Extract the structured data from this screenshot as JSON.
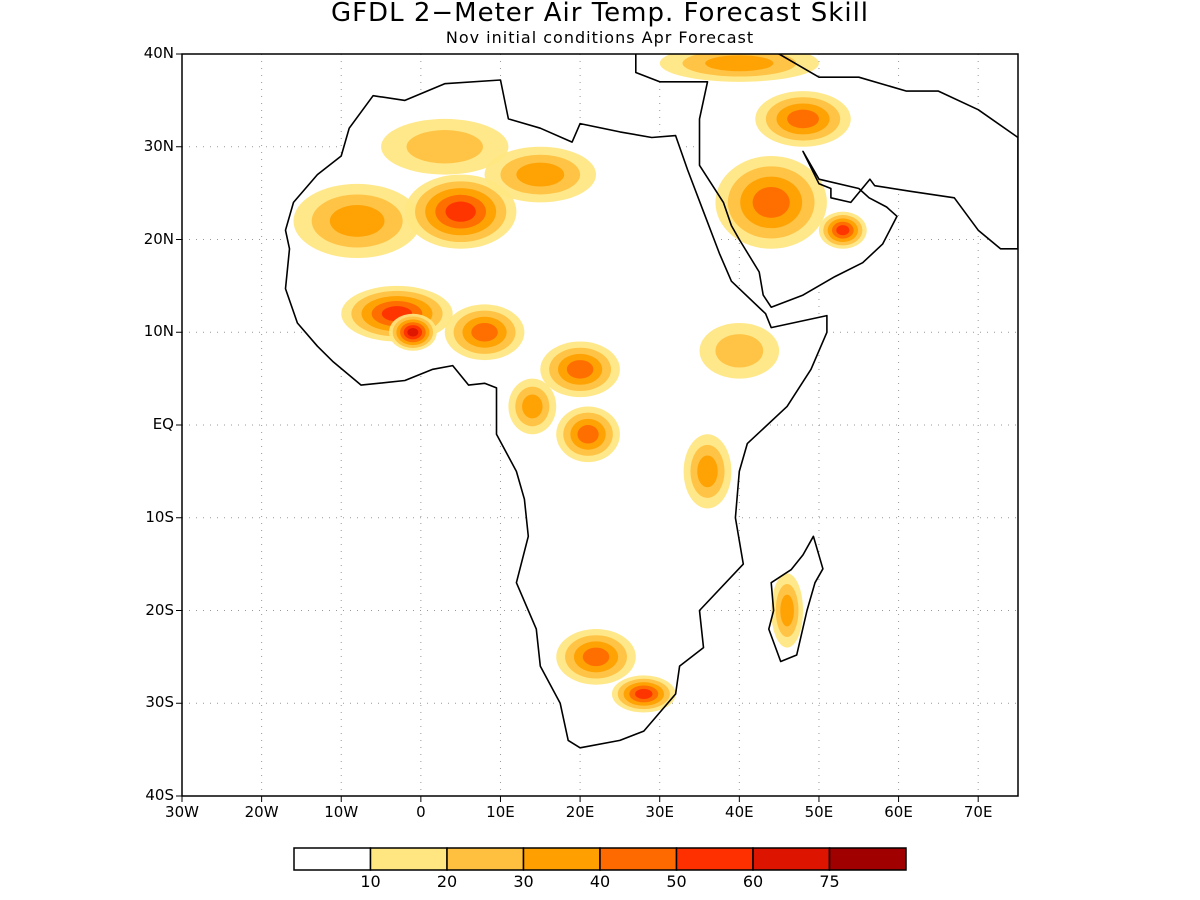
{
  "title": "GFDL 2−Meter Air Temp. Forecast Skill",
  "subtitle": "Nov initial conditions  Apr Forecast",
  "map": {
    "lon_range": [
      -30,
      75
    ],
    "lat_range": [
      -40,
      40
    ],
    "lat_ticks": [
      {
        "value": 40,
        "label": "40N"
      },
      {
        "value": 30,
        "label": "30N"
      },
      {
        "value": 20,
        "label": "20N"
      },
      {
        "value": 10,
        "label": "10N"
      },
      {
        "value": 0,
        "label": "EQ"
      },
      {
        "value": -10,
        "label": "10S"
      },
      {
        "value": -20,
        "label": "20S"
      },
      {
        "value": -30,
        "label": "30S"
      },
      {
        "value": -40,
        "label": "40S"
      }
    ],
    "lon_ticks": [
      {
        "value": -30,
        "label": "30W"
      },
      {
        "value": -20,
        "label": "20W"
      },
      {
        "value": -10,
        "label": "10W"
      },
      {
        "value": 0,
        "label": "0"
      },
      {
        "value": 10,
        "label": "10E"
      },
      {
        "value": 20,
        "label": "20E"
      },
      {
        "value": 30,
        "label": "30E"
      },
      {
        "value": 40,
        "label": "40E"
      },
      {
        "value": 50,
        "label": "50E"
      },
      {
        "value": 60,
        "label": "60E"
      },
      {
        "value": 70,
        "label": "70E"
      }
    ],
    "grid": true
  },
  "colorbar": {
    "colors": [
      "#ffffff",
      "#ffe680",
      "#ffc040",
      "#ffa000",
      "#ff6a00",
      "#ff3000",
      "#dc1400",
      "#a00000"
    ],
    "labels": [
      "10",
      "20",
      "30",
      "40",
      "50",
      "60",
      "75"
    ]
  },
  "skill_regions": [
    {
      "name": "sahara-west",
      "level": 3,
      "lon": -8,
      "lat": 22,
      "rx": 8,
      "ry": 4
    },
    {
      "name": "sahara-central",
      "level": 5,
      "lon": 5,
      "lat": 23,
      "rx": 7,
      "ry": 4
    },
    {
      "name": "sahara-north",
      "level": 2,
      "lon": 3,
      "lat": 30,
      "rx": 8,
      "ry": 3
    },
    {
      "name": "libya",
      "level": 3,
      "lon": 15,
      "lat": 27,
      "rx": 7,
      "ry": 3
    },
    {
      "name": "west-africa",
      "level": 5,
      "lon": -3,
      "lat": 12,
      "rx": 7,
      "ry": 3
    },
    {
      "name": "ghana",
      "level": 6,
      "lon": -1,
      "lat": 10,
      "rx": 3,
      "ry": 2
    },
    {
      "name": "nigeria",
      "level": 4,
      "lon": 8,
      "lat": 10,
      "rx": 5,
      "ry": 3
    },
    {
      "name": "chad-car",
      "level": 4,
      "lon": 20,
      "lat": 6,
      "rx": 5,
      "ry": 3
    },
    {
      "name": "gabon-congo",
      "level": 3,
      "lon": 14,
      "lat": 2,
      "rx": 3,
      "ry": 3
    },
    {
      "name": "drc",
      "level": 4,
      "lon": 21,
      "lat": -1,
      "rx": 4,
      "ry": 3
    },
    {
      "name": "ethiopia",
      "level": 2,
      "lon": 40,
      "lat": 8,
      "rx": 5,
      "ry": 3
    },
    {
      "name": "east-africa",
      "level": 3,
      "lon": 36,
      "lat": -5,
      "rx": 3,
      "ry": 4
    },
    {
      "name": "saudi",
      "level": 4,
      "lon": 44,
      "lat": 24,
      "rx": 7,
      "ry": 5
    },
    {
      "name": "oman",
      "level": 5,
      "lon": 53,
      "lat": 21,
      "rx": 3,
      "ry": 2
    },
    {
      "name": "iraq-iran",
      "level": 4,
      "lon": 48,
      "lat": 33,
      "rx": 6,
      "ry": 3
    },
    {
      "name": "turkey",
      "level": 3,
      "lon": 40,
      "lat": 39,
      "rx": 10,
      "ry": 2
    },
    {
      "name": "namibia-botswana",
      "level": 4,
      "lon": 22,
      "lat": -25,
      "rx": 5,
      "ry": 3
    },
    {
      "name": "south-africa",
      "level": 5,
      "lon": 28,
      "lat": -29,
      "rx": 4,
      "ry": 2
    },
    {
      "name": "madagascar",
      "level": 3,
      "lon": 46,
      "lat": -20,
      "rx": 2,
      "ry": 4
    }
  ]
}
